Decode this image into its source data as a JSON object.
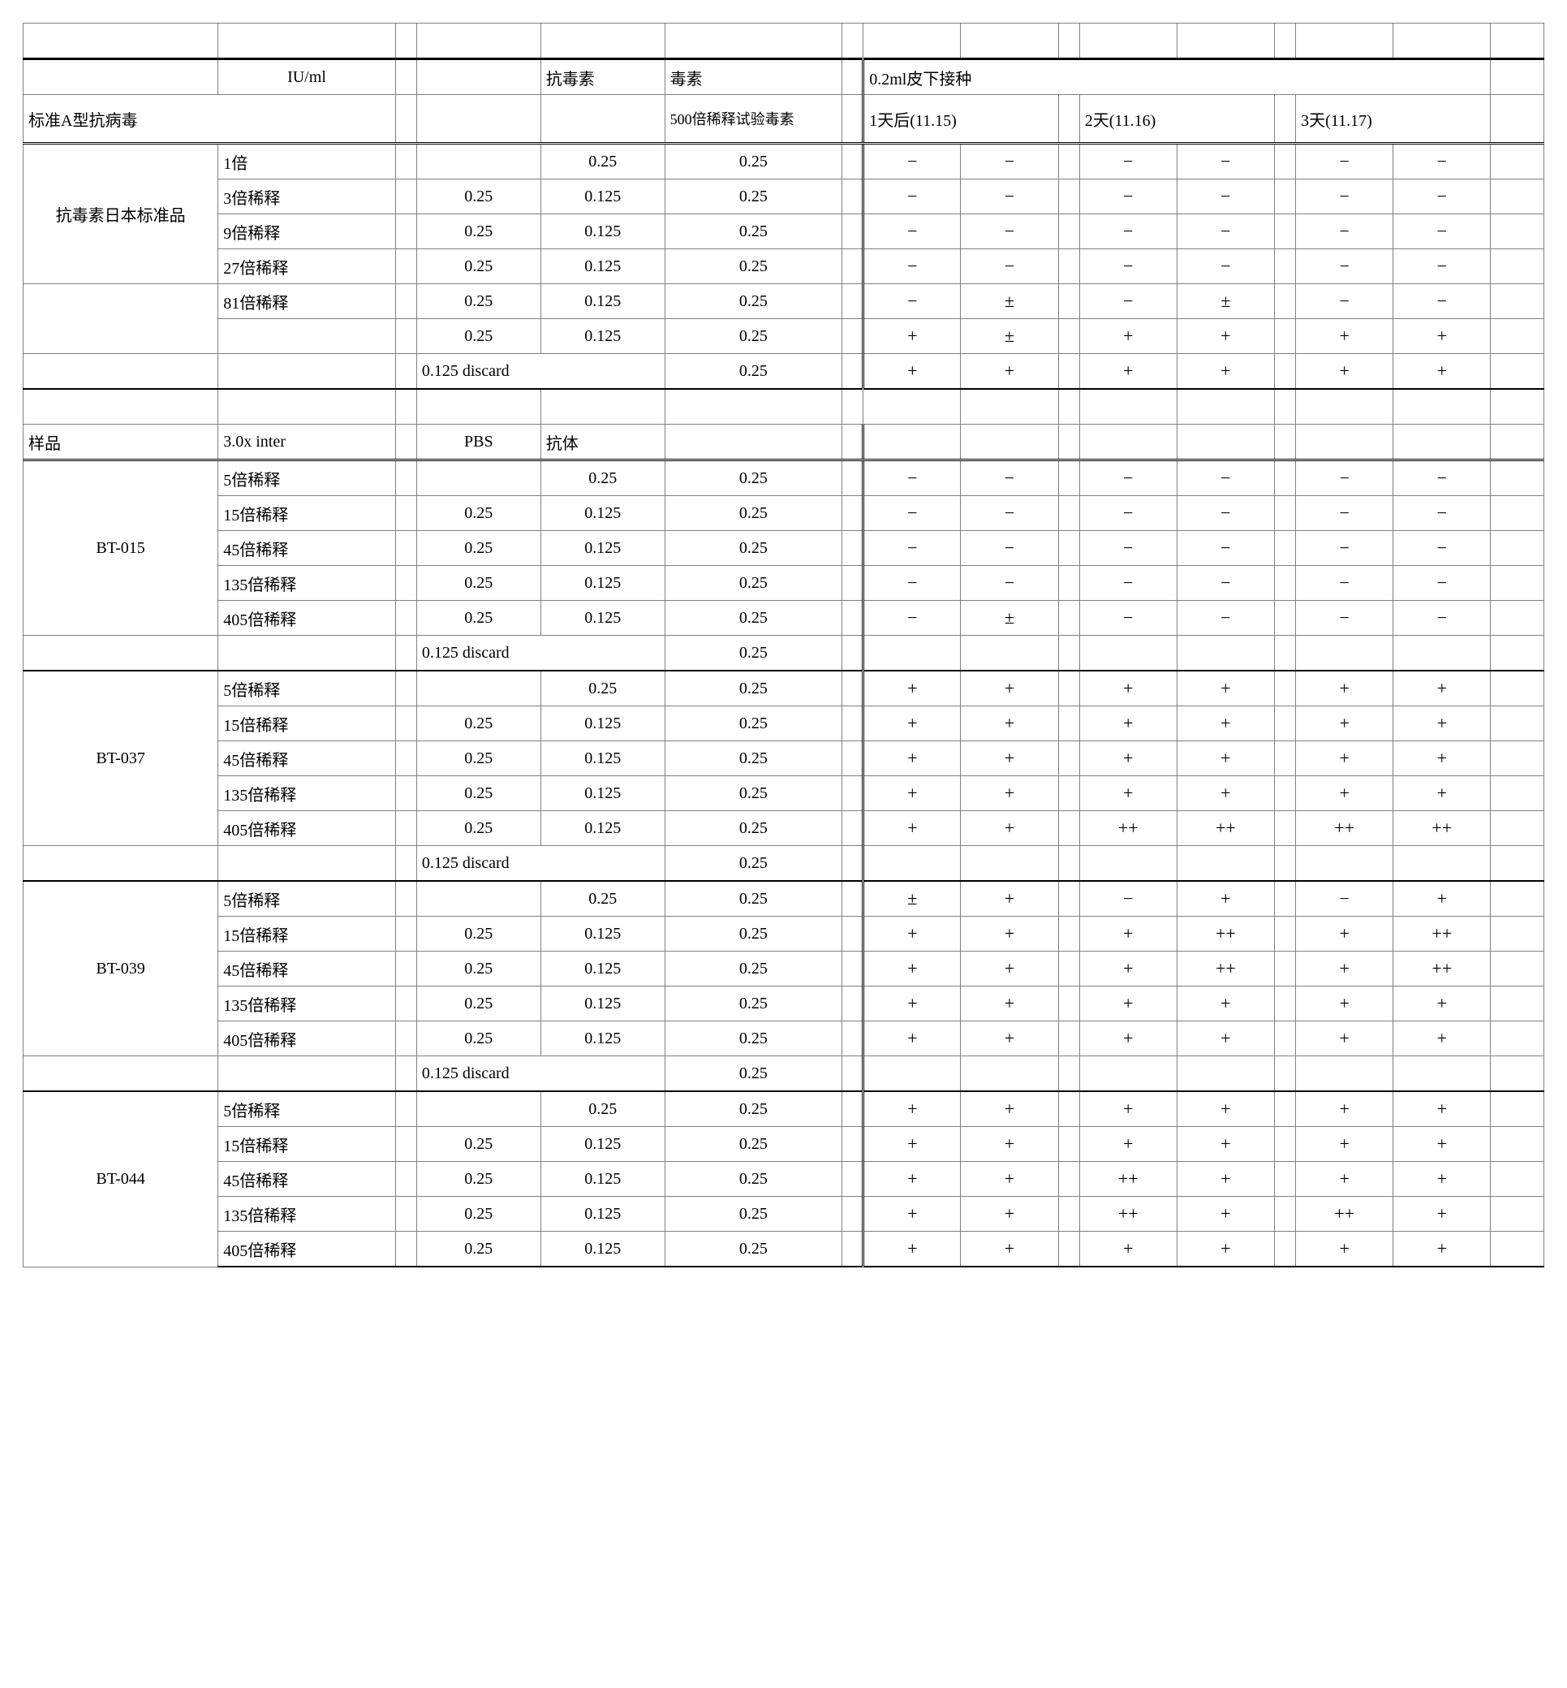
{
  "headers": {
    "iuml": "IU/ml",
    "antitoxin": "抗毒素",
    "toxin": "毒素",
    "inject": "0.2ml皮下接种",
    "standardA": "标准A型抗病毒",
    "toxin500": "500倍稀释试验毒素",
    "day1": "1天后(11.15)",
    "day2": "2天(11.16)",
    "day3": "3天(11.17)",
    "sample": "样品",
    "inter": "3.0x inter",
    "pbs": "PBS",
    "antibody": "抗体",
    "discard": "0.125 discard"
  },
  "val": {
    "v025": "0.25",
    "v0125": "0.125"
  },
  "groups": [
    {
      "name": "抗毒素日本标准品",
      "rows": [
        {
          "dil": "1倍",
          "pbs": "",
          "ab": "0.25",
          "tox": "0.25",
          "d": [
            "−",
            "−",
            "−",
            "−",
            "−",
            "−"
          ]
        },
        {
          "dil": "3倍稀释",
          "pbs": "0.25",
          "ab": "0.125",
          "tox": "0.25",
          "d": [
            "−",
            "−",
            "−",
            "−",
            "−",
            "−"
          ]
        },
        {
          "dil": "9倍稀释",
          "pbs": "0.25",
          "ab": "0.125",
          "tox": "0.25",
          "d": [
            "−",
            "−",
            "−",
            "−",
            "−",
            "−"
          ]
        },
        {
          "dil": "27倍稀释",
          "pbs": "0.25",
          "ab": "0.125",
          "tox": "0.25",
          "d": [
            "−",
            "−",
            "−",
            "−",
            "−",
            "−"
          ]
        },
        {
          "dil": "81倍稀释",
          "pbs": "0.25",
          "ab": "0.125",
          "tox": "0.25",
          "d": [
            "−",
            "±",
            "−",
            "±",
            "−",
            "−"
          ]
        },
        {
          "dil": "",
          "pbs": "0.25",
          "ab": "0.125",
          "tox": "0.25",
          "d": [
            "+",
            "±",
            "+",
            "+",
            "+",
            "+"
          ]
        }
      ],
      "discardRow": {
        "tox": "0.25",
        "d": [
          "+",
          "+",
          "+",
          "+",
          "+",
          "+"
        ]
      }
    },
    {
      "name": "BT-015",
      "rows": [
        {
          "dil": "5倍稀释",
          "pbs": "",
          "ab": "0.25",
          "tox": "0.25",
          "d": [
            "−",
            "−",
            "−",
            "−",
            "−",
            "−"
          ]
        },
        {
          "dil": "15倍稀释",
          "pbs": "0.25",
          "ab": "0.125",
          "tox": "0.25",
          "d": [
            "−",
            "−",
            "−",
            "−",
            "−",
            "−"
          ]
        },
        {
          "dil": "45倍稀释",
          "pbs": "0.25",
          "ab": "0.125",
          "tox": "0.25",
          "d": [
            "−",
            "−",
            "−",
            "−",
            "−",
            "−"
          ]
        },
        {
          "dil": "135倍稀释",
          "pbs": "0.25",
          "ab": "0.125",
          "tox": "0.25",
          "d": [
            "−",
            "−",
            "−",
            "−",
            "−",
            "−"
          ]
        },
        {
          "dil": "405倍稀释",
          "pbs": "0.25",
          "ab": "0.125",
          "tox": "0.25",
          "d": [
            "−",
            "±",
            "−",
            "−",
            "−",
            "−"
          ]
        }
      ],
      "discardRow": {
        "tox": "0.25",
        "d": [
          "",
          "",
          "",
          "",
          "",
          ""
        ]
      }
    },
    {
      "name": "BT-037",
      "rows": [
        {
          "dil": "5倍稀释",
          "pbs": "",
          "ab": "0.25",
          "tox": "0.25",
          "d": [
            "+",
            "+",
            "+",
            "+",
            "+",
            "+"
          ]
        },
        {
          "dil": "15倍稀释",
          "pbs": "0.25",
          "ab": "0.125",
          "tox": "0.25",
          "d": [
            "+",
            "+",
            "+",
            "+",
            "+",
            "+"
          ]
        },
        {
          "dil": "45倍稀释",
          "pbs": "0.25",
          "ab": "0.125",
          "tox": "0.25",
          "d": [
            "+",
            "+",
            "+",
            "+",
            "+",
            "+"
          ]
        },
        {
          "dil": "135倍稀释",
          "pbs": "0.25",
          "ab": "0.125",
          "tox": "0.25",
          "d": [
            "+",
            "+",
            "+",
            "+",
            "+",
            "+"
          ]
        },
        {
          "dil": "405倍稀释",
          "pbs": "0.25",
          "ab": "0.125",
          "tox": "0.25",
          "d": [
            "+",
            "+",
            "++",
            "++",
            "++",
            "++"
          ]
        }
      ],
      "discardRow": {
        "tox": "0.25",
        "d": [
          "",
          "",
          "",
          "",
          "",
          ""
        ]
      }
    },
    {
      "name": "BT-039",
      "rows": [
        {
          "dil": "5倍稀释",
          "pbs": "",
          "ab": "0.25",
          "tox": "0.25",
          "d": [
            "±",
            "+",
            "−",
            "+",
            "−",
            "+"
          ]
        },
        {
          "dil": "15倍稀释",
          "pbs": "0.25",
          "ab": "0.125",
          "tox": "0.25",
          "d": [
            "+",
            "+",
            "+",
            "++",
            "+",
            "++"
          ]
        },
        {
          "dil": "45倍稀释",
          "pbs": "0.25",
          "ab": "0.125",
          "tox": "0.25",
          "d": [
            "+",
            "+",
            "+",
            "++",
            "+",
            "++"
          ]
        },
        {
          "dil": "135倍稀释",
          "pbs": "0.25",
          "ab": "0.125",
          "tox": "0.25",
          "d": [
            "+",
            "+",
            "+",
            "+",
            "+",
            "+"
          ]
        },
        {
          "dil": "405倍稀释",
          "pbs": "0.25",
          "ab": "0.125",
          "tox": "0.25",
          "d": [
            "+",
            "+",
            "+",
            "+",
            "+",
            "+"
          ]
        }
      ],
      "discardRow": {
        "tox": "0.25",
        "d": [
          "",
          "",
          "",
          "",
          "",
          ""
        ]
      }
    },
    {
      "name": "BT-044",
      "rows": [
        {
          "dil": "5倍稀释",
          "pbs": "",
          "ab": "0.25",
          "tox": "0.25",
          "d": [
            "+",
            "+",
            "+",
            "+",
            "+",
            "+"
          ]
        },
        {
          "dil": "15倍稀释",
          "pbs": "0.25",
          "ab": "0.125",
          "tox": "0.25",
          "d": [
            "+",
            "+",
            "+",
            "+",
            "+",
            "+"
          ]
        },
        {
          "dil": "45倍稀释",
          "pbs": "0.25",
          "ab": "0.125",
          "tox": "0.25",
          "d": [
            "+",
            "+",
            "++",
            "+",
            "+",
            "+"
          ]
        },
        {
          "dil": "135倍稀释",
          "pbs": "0.25",
          "ab": "0.125",
          "tox": "0.25",
          "d": [
            "+",
            "+",
            "++",
            "+",
            "++",
            "+"
          ]
        },
        {
          "dil": "405倍稀释",
          "pbs": "0.25",
          "ab": "0.125",
          "tox": "0.25",
          "d": [
            "+",
            "+",
            "+",
            "+",
            "+",
            "+"
          ]
        }
      ],
      "discardRow": null
    }
  ]
}
